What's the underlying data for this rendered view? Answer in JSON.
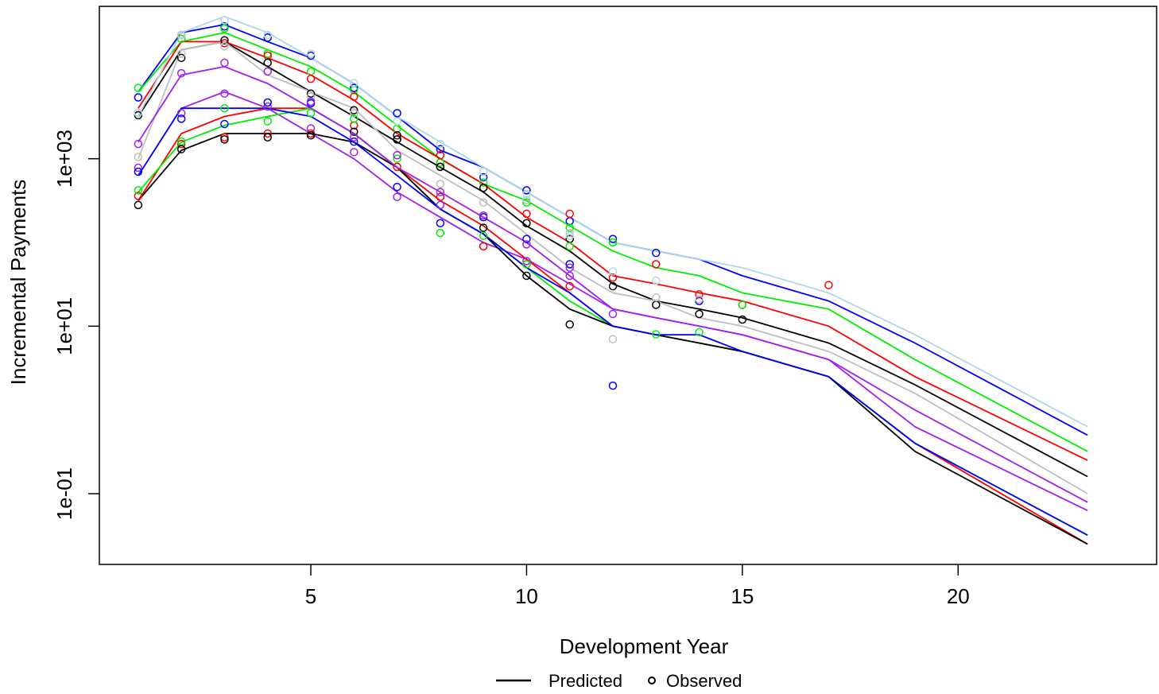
{
  "chart_data": {
    "type": "line",
    "xlabel": "Development Year",
    "ylabel": "Incremental Payments",
    "log_y": true,
    "x": [
      1,
      2,
      3,
      4,
      5,
      6,
      7,
      8,
      9,
      10,
      11,
      12,
      13,
      14,
      15,
      17,
      19,
      23
    ],
    "xlim": [
      0.1,
      24.6
    ],
    "ylim": [
      0.0143,
      66000
    ],
    "xticks": [
      5,
      10,
      15,
      20
    ],
    "yticks": [
      {
        "value": 0.1,
        "label": "1e-01"
      },
      {
        "value": 10,
        "label": "1e+01"
      },
      {
        "value": 1000,
        "label": "1e+03"
      }
    ],
    "legend": {
      "predicted": "Predicted",
      "observed": "Observed"
    },
    "series": [
      {
        "color": "#0000ff",
        "values": [
          6300,
          32000,
          40000,
          25000,
          16000,
          7900,
          3200,
          1260,
          790,
          400,
          200,
          100,
          79,
          63,
          40,
          20,
          6.3,
          0.5
        ],
        "observed": [
          5400,
          30000,
          38000,
          28000,
          17000,
          7000,
          3500,
          1300,
          600,
          420,
          180,
          110,
          75,
          20,
          null,
          null,
          null,
          null
        ]
      },
      {
        "color": "#00ee00",
        "values": [
          6300,
          25000,
          32000,
          20000,
          12600,
          6300,
          2500,
          1000,
          500,
          316,
          158,
          79,
          50,
          40,
          25,
          16,
          4.0,
          0.32
        ],
        "observed": [
          7000,
          27000,
          36000,
          18000,
          11000,
          6600,
          2300,
          900,
          520,
          300,
          150,
          100,
          null,
          null,
          null,
          null,
          null,
          null
        ]
      },
      {
        "color": "#ff0000",
        "values": [
          4000,
          25000,
          25000,
          16000,
          10000,
          5000,
          2000,
          1000,
          500,
          200,
          100,
          40,
          32,
          25,
          20,
          10,
          2.5,
          0.25
        ],
        "observed": [
          3500,
          30000,
          24000,
          17000,
          9000,
          5500,
          1700,
          1100,
          450,
          220,
          220,
          38,
          55,
          24,
          18,
          31,
          null,
          null
        ]
      },
      {
        "color": "#000000",
        "values": [
          3200,
          20000,
          25000,
          12600,
          6300,
          3200,
          1580,
          790,
          400,
          158,
          79,
          32,
          20,
          16,
          12.6,
          6.3,
          2.0,
          0.16
        ],
        "observed": [
          3300,
          16000,
          26000,
          14000,
          6000,
          3800,
          1900,
          800,
          450,
          170,
          110,
          30,
          18,
          14,
          12,
          null,
          null,
          null
        ]
      },
      {
        "color": "#bebebe",
        "values": [
          1000,
          20000,
          25000,
          10000,
          6300,
          4000,
          1260,
          630,
          316,
          126,
          50,
          25,
          20,
          12.6,
          10,
          5.0,
          1.58,
          0.1
        ],
        "observed": [
          1050,
          18000,
          22000,
          11000,
          5500,
          3500,
          1100,
          500,
          300,
          320,
          130,
          7,
          22,
          21,
          null,
          null,
          null,
          null
        ]
      },
      {
        "color": "#a020f0",
        "values": [
          630,
          4000,
          6300,
          4000,
          2000,
          1000,
          400,
          200,
          100,
          63,
          32,
          16,
          12.6,
          10,
          7.9,
          4.0,
          0.63,
          0.063
        ],
        "observed": [
          780,
          3500,
          6000,
          4200,
          2300,
          1200,
          350,
          280,
          90,
          60,
          40,
          null,
          null,
          null,
          null,
          null,
          null,
          null
        ]
      },
      {
        "color": "#ff0000",
        "values": [
          316,
          2000,
          3200,
          4000,
          4000,
          2000,
          790,
          316,
          158,
          63,
          25,
          10,
          7.9,
          6.3,
          5.0,
          2.5,
          0.4,
          0.025
        ],
        "observed": [
          360,
          1500,
          1800,
          2000,
          2000,
          2500,
          800,
          350,
          90,
          55,
          30,
          null,
          null,
          null,
          null,
          null,
          null,
          null
        ]
      },
      {
        "color": "#00ee00",
        "values": [
          400,
          1580,
          2500,
          3200,
          4000,
          2000,
          790,
          250,
          126,
          50,
          20,
          10,
          7.9,
          6.3,
          5.0,
          2.5,
          0.4,
          0.032
        ],
        "observed": [
          420,
          1600,
          4000,
          2800,
          3500,
          3000,
          1000,
          130,
          120,
          55,
          90,
          100,
          8,
          8.5,
          18,
          null,
          null,
          null
        ]
      },
      {
        "color": "#000000",
        "values": [
          316,
          1260,
          2000,
          2000,
          2000,
          1580,
          790,
          250,
          126,
          40,
          16,
          10,
          7.9,
          6.3,
          5.0,
          2.5,
          0.32,
          0.025
        ],
        "observed": [
          280,
          1300,
          1700,
          1800,
          1900,
          2100,
          1700,
          800,
          150,
          40,
          10.5,
          null,
          null,
          null,
          null,
          null,
          null,
          null
        ]
      },
      {
        "color": "#0000ff",
        "values": [
          630,
          4000,
          4000,
          4000,
          3200,
          1580,
          630,
          250,
          126,
          50,
          25,
          10,
          7.9,
          7.9,
          5.0,
          2.5,
          0.4,
          0.032
        ],
        "observed": [
          700,
          3000,
          2600,
          4700,
          4600,
          1600,
          460,
          170,
          200,
          110,
          55,
          1.95,
          null,
          null,
          null,
          null,
          null,
          null
        ]
      },
      {
        "color": "#add8e6",
        "values": [
          3200,
          32000,
          50000,
          32000,
          16000,
          7900,
          3200,
          1580,
          790,
          400,
          200,
          100,
          79,
          63,
          50,
          25,
          7.9,
          0.63
        ],
        "observed": [
          3500,
          30000,
          45000,
          30000,
          18000,
          8000,
          2800,
          1500,
          700,
          380,
          120,
          45,
          35,
          null,
          null,
          null,
          null,
          null
        ]
      },
      {
        "color": "#a020f0",
        "values": [
          1580,
          10000,
          12600,
          7900,
          4000,
          2000,
          790,
          400,
          200,
          100,
          40,
          16,
          12.6,
          10,
          7.9,
          4.0,
          1,
          0.079
        ],
        "observed": [
          1500,
          10500,
          14000,
          11000,
          4800,
          1800,
          1100,
          400,
          210,
          95,
          50,
          14,
          null,
          null,
          null,
          null,
          null,
          null
        ]
      }
    ]
  }
}
